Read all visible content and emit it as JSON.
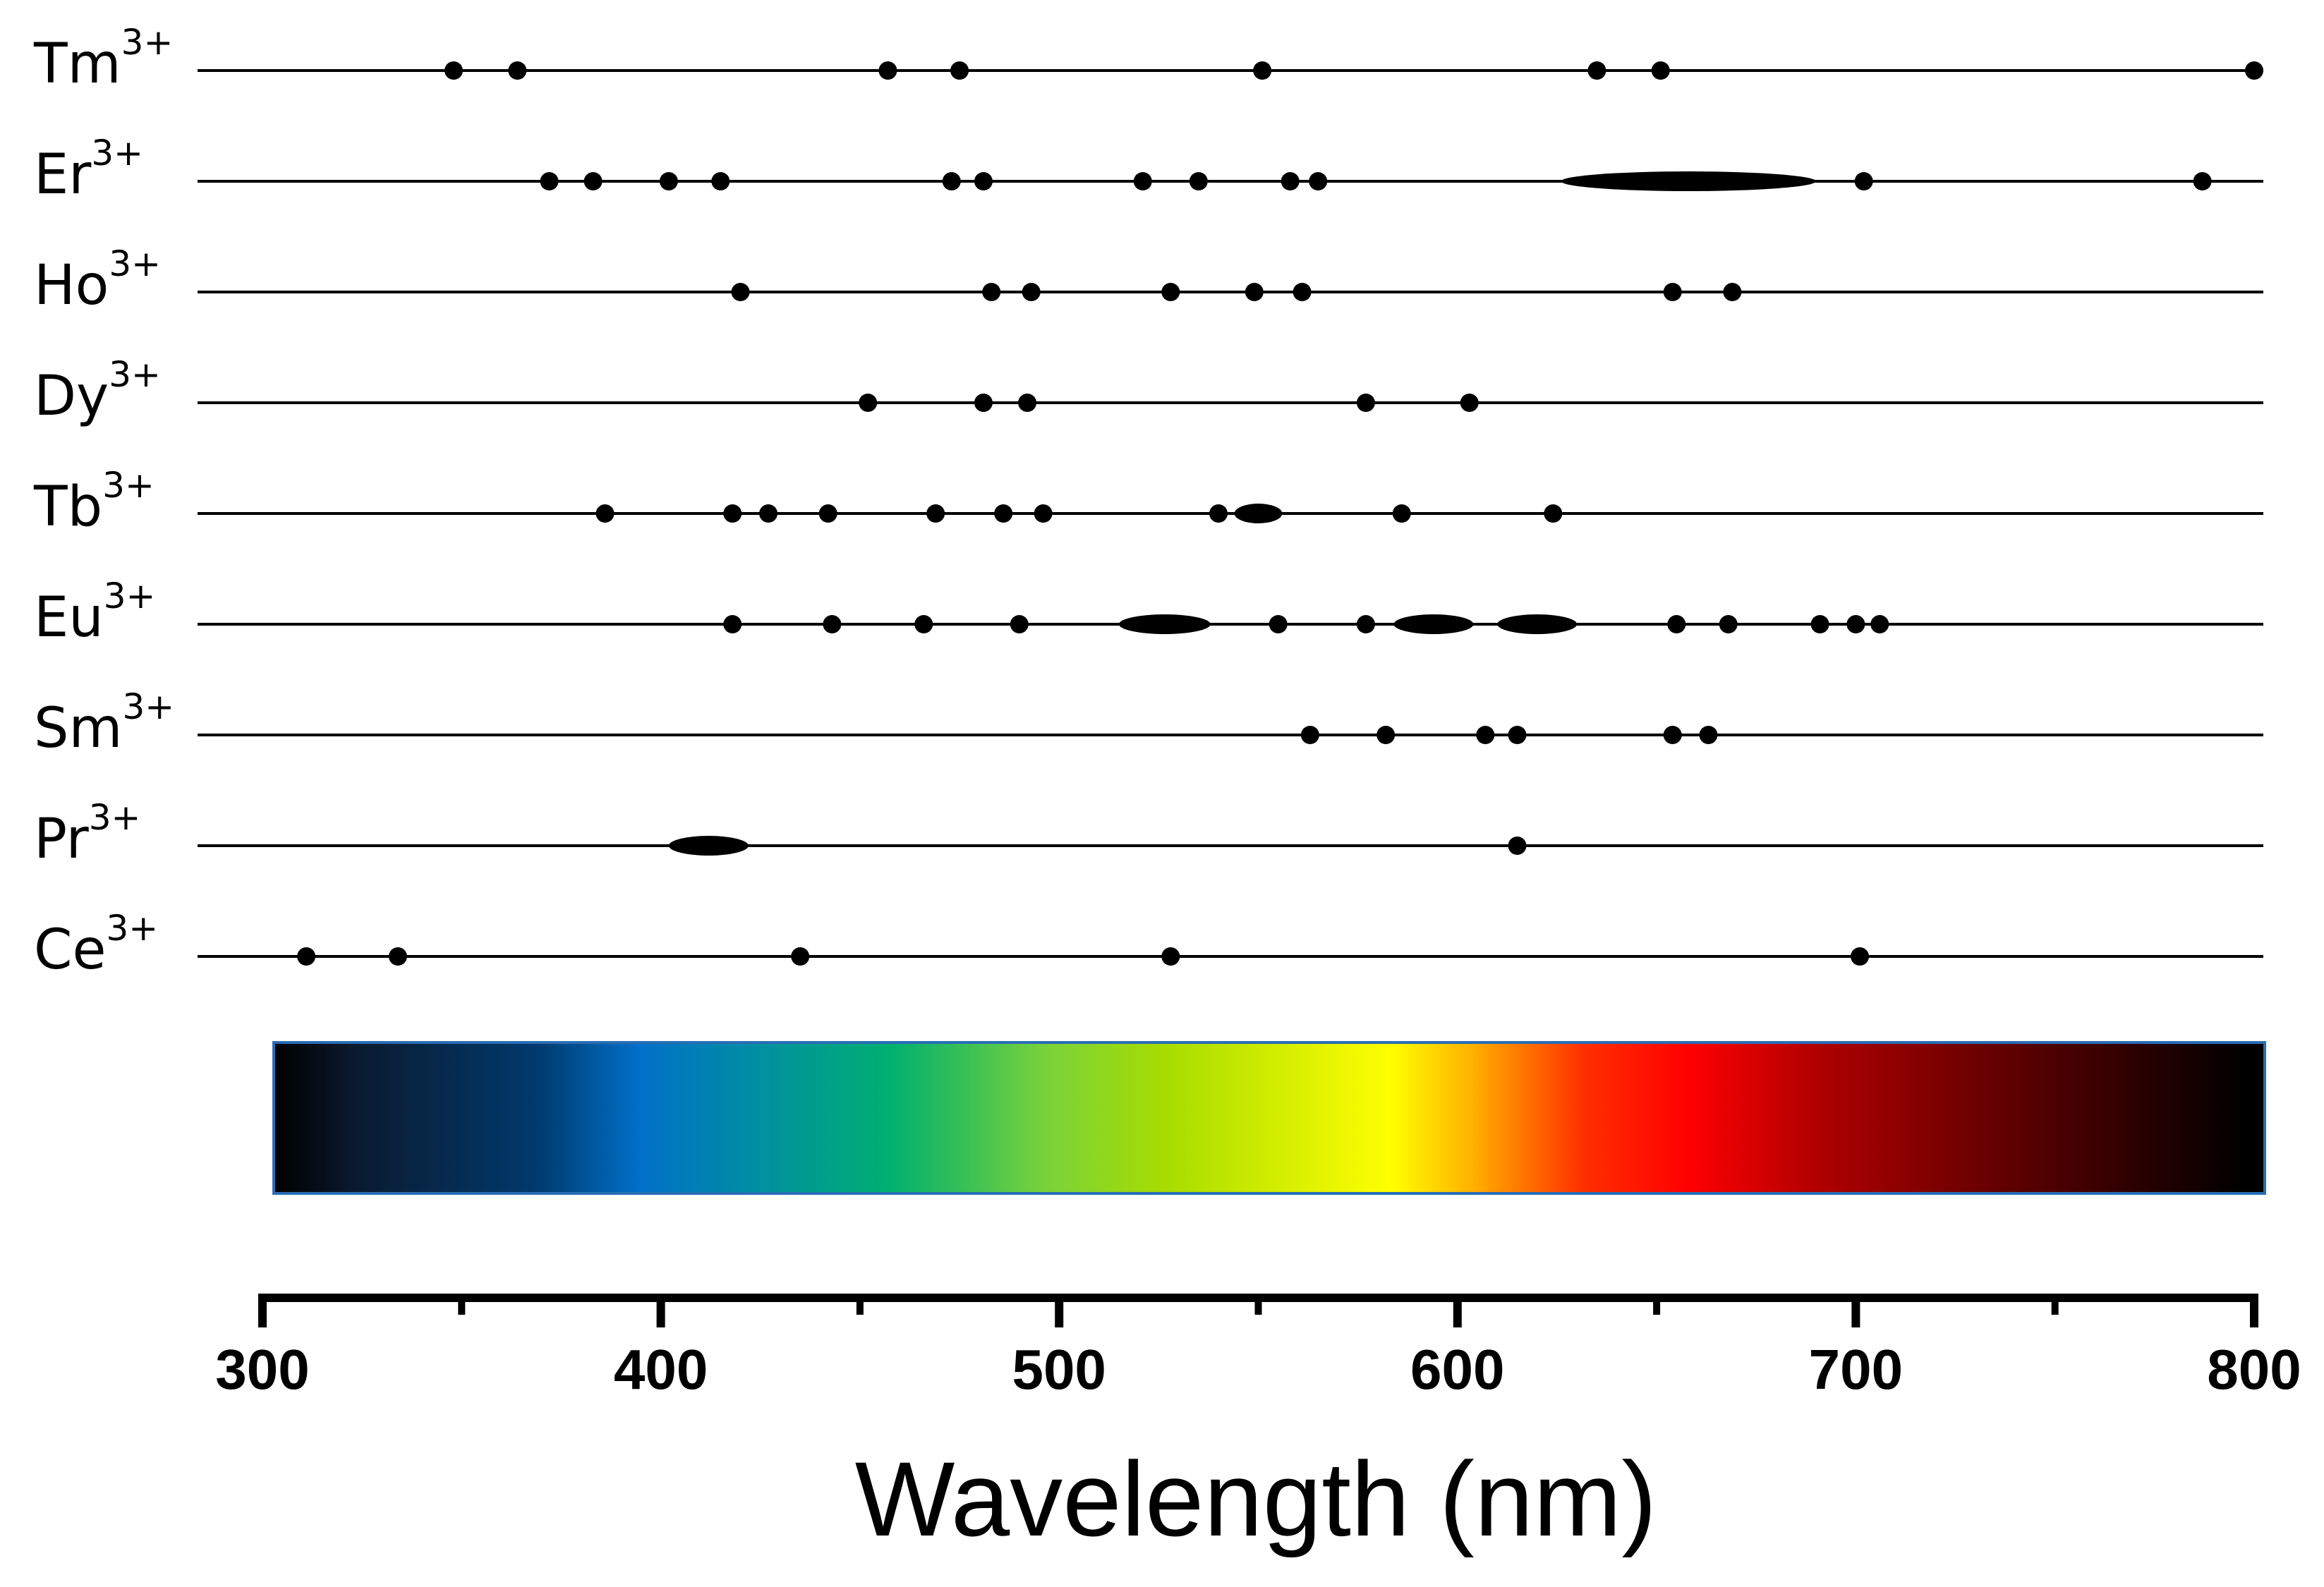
{
  "chart_data": {
    "type": "scatter",
    "title": "",
    "xlabel": "Wavelength (nm)",
    "ylabel": "",
    "xlim": [
      300,
      800
    ],
    "x_ticks": [
      300,
      400,
      500,
      600,
      700,
      800
    ],
    "x_minor_ticks": [
      350,
      450,
      550,
      650,
      750
    ],
    "colorbar": {
      "range_nm": [
        310,
        800
      ],
      "stops": [
        {
          "nm": 310,
          "color": "#000000"
        },
        {
          "nm": 330,
          "color": "#0a1a2e"
        },
        {
          "nm": 375,
          "color": "#003a6e"
        },
        {
          "nm": 400,
          "color": "#0070c8"
        },
        {
          "nm": 430,
          "color": "#0090a0"
        },
        {
          "nm": 462,
          "color": "#00b070"
        },
        {
          "nm": 500,
          "color": "#7ad23a"
        },
        {
          "nm": 530,
          "color": "#a8dc00"
        },
        {
          "nm": 585,
          "color": "#ffff00"
        },
        {
          "nm": 605,
          "color": "#ffb000"
        },
        {
          "nm": 632,
          "color": "#ff3000"
        },
        {
          "nm": 658,
          "color": "#ff0000"
        },
        {
          "nm": 690,
          "color": "#b00000"
        },
        {
          "nm": 740,
          "color": "#5a0000"
        },
        {
          "nm": 795,
          "color": "#000000"
        }
      ]
    },
    "series": [
      {
        "name": "Tm",
        "charge": "3+",
        "lines": [
          348,
          364,
          457,
          475,
          551,
          635,
          651,
          800
        ],
        "bands": []
      },
      {
        "name": "Er",
        "charge": "3+",
        "lines": [
          372,
          383,
          402,
          415,
          473,
          481,
          521,
          535,
          558,
          565,
          702,
          787
        ],
        "bands": [
          [
            626,
            690
          ]
        ]
      },
      {
        "name": "Ho",
        "charge": "3+",
        "lines": [
          420,
          483,
          493,
          528,
          549,
          561,
          654,
          669
        ],
        "bands": []
      },
      {
        "name": "Dy",
        "charge": "3+",
        "lines": [
          452,
          481,
          492,
          577,
          603
        ],
        "bands": []
      },
      {
        "name": "Tb",
        "charge": "3+",
        "lines": [
          386,
          418,
          427,
          442,
          469,
          486,
          496,
          540
        ],
        "bands": [
          [
            544,
            556
          ]
        ],
        "lines_extra": [
          586,
          624
        ]
      },
      {
        "name": "Eu",
        "charge": "3+",
        "lines": [
          418,
          443,
          466,
          490,
          555,
          577,
          655,
          668,
          691,
          700,
          706
        ],
        "bands": [
          [
            515,
            538
          ],
          [
            584,
            604
          ],
          [
            610,
            630
          ]
        ]
      },
      {
        "name": "Sm",
        "charge": "3+",
        "lines": [
          563,
          582,
          607,
          615,
          654,
          663
        ],
        "bands": []
      },
      {
        "name": "Pr",
        "charge": "3+",
        "lines": [
          615
        ],
        "bands": [
          [
            402,
            422
          ]
        ]
      },
      {
        "name": "Ce",
        "charge": "3+",
        "lines": [
          311,
          334,
          435,
          528,
          701
        ],
        "bands": []
      }
    ]
  }
}
